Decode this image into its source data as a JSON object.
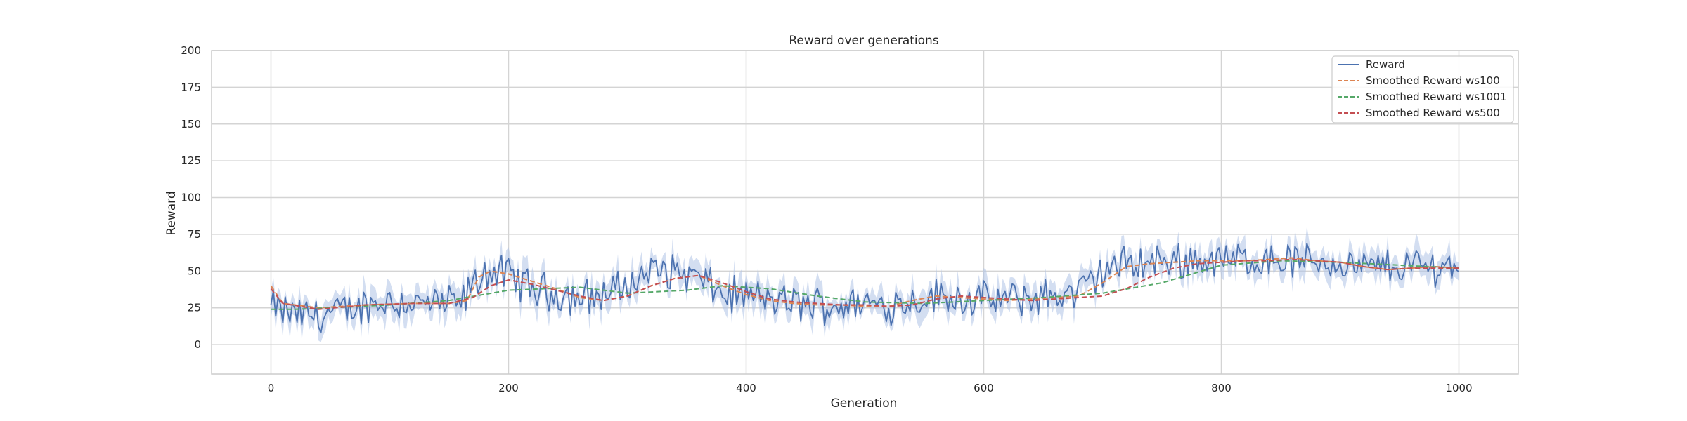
{
  "chart_data": {
    "type": "line",
    "title": "Reward over generations",
    "xlabel": "Generation",
    "ylabel": "Reward",
    "xlim": [
      -50,
      1050
    ],
    "ylim": [
      -20,
      200
    ],
    "xticks": [
      0,
      200,
      400,
      600,
      800,
      1000
    ],
    "yticks": [
      0,
      25,
      50,
      75,
      100,
      125,
      150,
      175,
      200
    ],
    "grid": true,
    "legend_position": "top-right",
    "reward_band": true,
    "colors": {
      "Reward": "#4c72b0",
      "Smoothed Reward ws100": "#dd8452",
      "Smoothed Reward ws1001": "#55a868",
      "Smoothed Reward ws500": "#c44e52",
      "band": "#aec3e6",
      "grid": "#d4d4d4",
      "frame": "#cccccc"
    },
    "series": [
      {
        "name": "Reward",
        "style": "solid",
        "x": [
          0,
          20,
          40,
          60,
          80,
          100,
          120,
          140,
          160,
          180,
          200,
          220,
          240,
          260,
          280,
          300,
          320,
          340,
          360,
          380,
          400,
          420,
          440,
          460,
          480,
          500,
          520,
          540,
          560,
          580,
          600,
          620,
          640,
          660,
          680,
          700,
          720,
          740,
          760,
          780,
          800,
          820,
          840,
          860,
          880,
          900,
          920,
          940,
          960,
          980,
          1000
        ],
        "y": [
          25,
          20,
          20,
          22,
          27,
          30,
          28,
          27,
          28,
          50,
          47,
          38,
          35,
          32,
          34,
          40,
          50,
          50,
          45,
          34,
          33,
          30,
          28,
          27,
          27,
          28,
          27,
          30,
          33,
          32,
          30,
          30,
          32,
          33,
          35,
          50,
          55,
          56,
          57,
          58,
          57,
          58,
          58,
          57,
          57,
          55,
          52,
          53,
          54,
          53,
          55
        ],
        "noise_amplitude": 11
      },
      {
        "name": "Smoothed Reward ws100",
        "style": "dashed",
        "x": [
          0,
          10,
          40,
          80,
          120,
          150,
          165,
          175,
          185,
          200,
          220,
          240,
          260,
          280,
          300,
          320,
          340,
          360,
          380,
          400,
          420,
          440,
          460,
          480,
          500,
          520,
          540,
          560,
          580,
          600,
          620,
          640,
          660,
          680,
          700,
          720,
          740,
          760,
          780,
          800,
          820,
          840,
          860,
          880,
          900,
          920,
          940,
          960,
          980,
          1000
        ],
        "y": [
          40,
          28,
          25,
          27,
          28,
          28,
          30,
          46,
          50,
          48,
          43,
          38,
          32,
          30,
          33,
          40,
          45,
          47,
          40,
          34,
          30,
          28,
          27,
          27,
          26,
          26,
          30,
          33,
          32,
          31,
          30,
          31,
          32,
          33,
          42,
          53,
          55,
          56,
          57,
          57,
          57,
          58,
          59,
          57,
          56,
          53,
          51,
          52,
          53,
          52
        ]
      },
      {
        "name": "Smoothed Reward ws1001",
        "style": "dashed",
        "x": [
          0,
          20,
          50,
          100,
          150,
          200,
          260,
          300,
          350,
          380,
          420,
          460,
          500,
          550,
          600,
          650,
          700,
          750,
          800,
          850,
          900,
          950,
          1000
        ],
        "y": [
          24,
          24,
          25,
          27,
          30,
          37,
          39,
          35,
          37,
          40,
          38,
          33,
          29,
          28,
          30,
          32,
          35,
          42,
          54,
          57,
          56,
          54,
          52
        ]
      },
      {
        "name": "Smoothed Reward ws500",
        "style": "dashed",
        "x": [
          0,
          10,
          40,
          80,
          120,
          150,
          170,
          185,
          200,
          220,
          240,
          260,
          280,
          300,
          320,
          340,
          360,
          380,
          400,
          420,
          440,
          460,
          480,
          500,
          520,
          540,
          560,
          580,
          600,
          620,
          640,
          660,
          680,
          700,
          720,
          740,
          760,
          780,
          800,
          820,
          840,
          860,
          880,
          900,
          920,
          940,
          960,
          980,
          1000
        ],
        "y": [
          38,
          28,
          24,
          27,
          28,
          28,
          32,
          40,
          44,
          41,
          37,
          33,
          30,
          33,
          40,
          45,
          47,
          42,
          36,
          31,
          29,
          28,
          27,
          27,
          26,
          27,
          31,
          33,
          32,
          31,
          30,
          31,
          32,
          33,
          38,
          46,
          52,
          55,
          56,
          57,
          57,
          58,
          57,
          56,
          53,
          51,
          52,
          52,
          52
        ]
      }
    ]
  }
}
